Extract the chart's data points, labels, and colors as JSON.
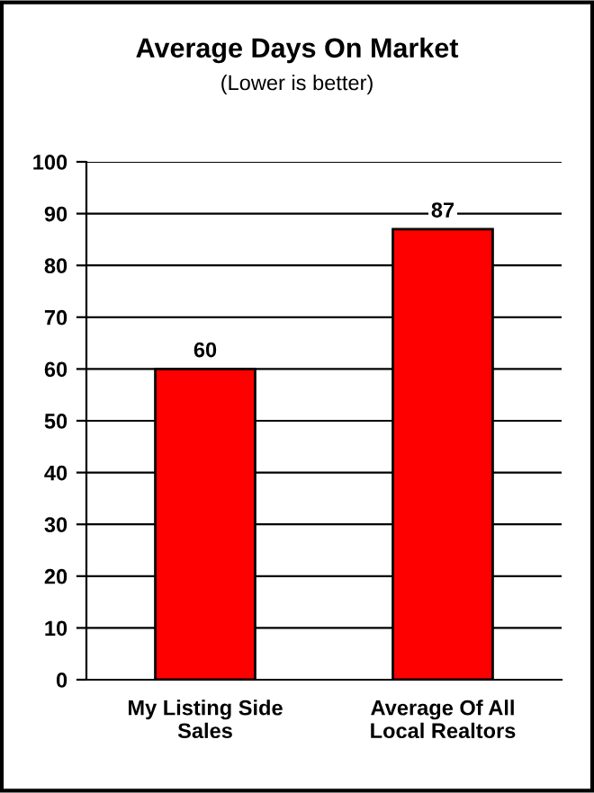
{
  "chart_data": {
    "type": "bar",
    "title": "Average Days On Market",
    "subtitle": "(Lower is better)",
    "categories": [
      "My Listing Side\nSales",
      "Average Of All\nLocal Realtors"
    ],
    "values": [
      60,
      87
    ],
    "color": "#ff0000",
    "ylim": [
      0,
      100
    ],
    "yticks": [
      0,
      10,
      20,
      30,
      40,
      50,
      60,
      70,
      80,
      90,
      100
    ],
    "grid": "y",
    "data_labels": true
  }
}
